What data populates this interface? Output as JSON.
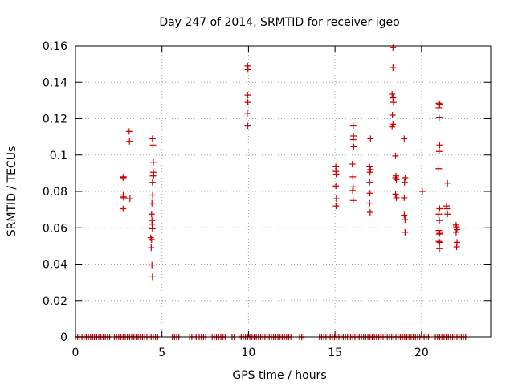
{
  "chart_data": {
    "type": "scatter",
    "title": "Day 247 of 2014, SRMTID for receiver igeo",
    "xlabel": "GPS time / hours",
    "ylabel": "SRMTID / TECUs",
    "xlim": [
      0,
      24
    ],
    "ylim": [
      0,
      0.16
    ],
    "xticks": [
      0,
      5,
      10,
      15,
      20
    ],
    "xtick_labels": [
      "0",
      "5",
      "10",
      "15",
      "20"
    ],
    "yticks": [
      0,
      0.02,
      0.04,
      0.06,
      0.08,
      0.1,
      0.12,
      0.14,
      0.16
    ],
    "ytick_labels": [
      "0",
      "0.02",
      "0.04",
      "0.06",
      "0.08",
      "0.1",
      "0.12",
      "0.14",
      "0.16"
    ],
    "grid": true,
    "marker": "+",
    "color": "#cc0000",
    "series": [
      {
        "name": "SRMTID",
        "points": [
          [
            2.75,
            0.0875
          ],
          [
            2.78,
            0.088
          ],
          [
            2.76,
            0.078
          ],
          [
            2.8,
            0.0765
          ],
          [
            2.77,
            0.077
          ],
          [
            2.75,
            0.0705
          ],
          [
            3.1,
            0.113
          ],
          [
            3.12,
            0.1075
          ],
          [
            3.15,
            0.076
          ],
          [
            4.45,
            0.109
          ],
          [
            4.48,
            0.1055
          ],
          [
            4.5,
            0.096
          ],
          [
            4.5,
            0.0905
          ],
          [
            4.52,
            0.089
          ],
          [
            4.48,
            0.0885
          ],
          [
            4.45,
            0.085
          ],
          [
            4.46,
            0.078
          ],
          [
            4.42,
            0.0735
          ],
          [
            4.4,
            0.0675
          ],
          [
            4.42,
            0.064
          ],
          [
            4.43,
            0.062
          ],
          [
            4.45,
            0.0595
          ],
          [
            4.35,
            0.0545
          ],
          [
            4.4,
            0.0535
          ],
          [
            4.38,
            0.049
          ],
          [
            4.42,
            0.0395
          ],
          [
            4.45,
            0.033
          ],
          [
            9.95,
            0.149
          ],
          [
            9.97,
            0.147
          ],
          [
            9.95,
            0.133
          ],
          [
            9.96,
            0.129
          ],
          [
            9.93,
            0.123
          ],
          [
            9.95,
            0.116
          ],
          [
            15.05,
            0.0935
          ],
          [
            15.05,
            0.091
          ],
          [
            15.07,
            0.0895
          ],
          [
            15.05,
            0.083
          ],
          [
            15.08,
            0.076
          ],
          [
            15.06,
            0.072
          ],
          [
            16.05,
            0.116
          ],
          [
            16.07,
            0.1105
          ],
          [
            16.05,
            0.1085
          ],
          [
            16.08,
            0.1045
          ],
          [
            16.0,
            0.095
          ],
          [
            16.03,
            0.088
          ],
          [
            16.05,
            0.0825
          ],
          [
            16.02,
            0.0805
          ],
          [
            16.05,
            0.075
          ],
          [
            17.05,
            0.109
          ],
          [
            17.0,
            0.0935
          ],
          [
            17.05,
            0.092
          ],
          [
            17.02,
            0.0905
          ],
          [
            17.0,
            0.085
          ],
          [
            17.02,
            0.079
          ],
          [
            17.0,
            0.0735
          ],
          [
            17.03,
            0.0685
          ],
          [
            18.35,
            0.159
          ],
          [
            18.35,
            0.148
          ],
          [
            18.3,
            0.1335
          ],
          [
            18.35,
            0.1315
          ],
          [
            18.38,
            0.129
          ],
          [
            18.32,
            0.122
          ],
          [
            18.35,
            0.117
          ],
          [
            18.3,
            0.1155
          ],
          [
            18.5,
            0.0995
          ],
          [
            18.52,
            0.0885
          ],
          [
            18.5,
            0.0875
          ],
          [
            18.55,
            0.0865
          ],
          [
            18.5,
            0.0785
          ],
          [
            18.55,
            0.0765
          ],
          [
            19.0,
            0.109
          ],
          [
            19.05,
            0.0875
          ],
          [
            19.02,
            0.085
          ],
          [
            19.0,
            0.0765
          ],
          [
            19.0,
            0.067
          ],
          [
            19.05,
            0.0645
          ],
          [
            19.05,
            0.0575
          ],
          [
            20.05,
            0.08
          ],
          [
            21.0,
            0.1285
          ],
          [
            21.05,
            0.128
          ],
          [
            21.0,
            0.126
          ],
          [
            21.02,
            0.1205
          ],
          [
            21.05,
            0.1055
          ],
          [
            21.02,
            0.102
          ],
          [
            21.0,
            0.0925
          ],
          [
            21.05,
            0.0705
          ],
          [
            21.0,
            0.0675
          ],
          [
            21.03,
            0.064
          ],
          [
            21.0,
            0.0585
          ],
          [
            21.05,
            0.057
          ],
          [
            21.02,
            0.0565
          ],
          [
            21.0,
            0.0525
          ],
          [
            21.05,
            0.052
          ],
          [
            21.03,
            0.0485
          ],
          [
            21.5,
            0.0845
          ],
          [
            21.45,
            0.072
          ],
          [
            21.47,
            0.0705
          ],
          [
            21.5,
            0.0675
          ],
          [
            22.0,
            0.0615
          ],
          [
            22.02,
            0.0605
          ],
          [
            22.05,
            0.059
          ],
          [
            22.0,
            0.0575
          ],
          [
            22.05,
            0.052
          ],
          [
            22.03,
            0.0495
          ]
        ]
      }
    ],
    "zero_segments": [
      [
        0.0,
        1.0
      ],
      [
        1.1,
        2.05
      ],
      [
        2.25,
        4.85
      ],
      [
        5.6,
        6.05
      ],
      [
        6.6,
        7.0
      ],
      [
        7.15,
        7.6
      ],
      [
        7.9,
        8.7
      ],
      [
        9.05,
        9.25
      ],
      [
        9.45,
        12.45
      ],
      [
        12.95,
        13.25
      ],
      [
        14.1,
        15.75
      ],
      [
        15.9,
        19.1
      ],
      [
        19.15,
        20.5
      ],
      [
        20.8,
        22.6
      ]
    ]
  }
}
